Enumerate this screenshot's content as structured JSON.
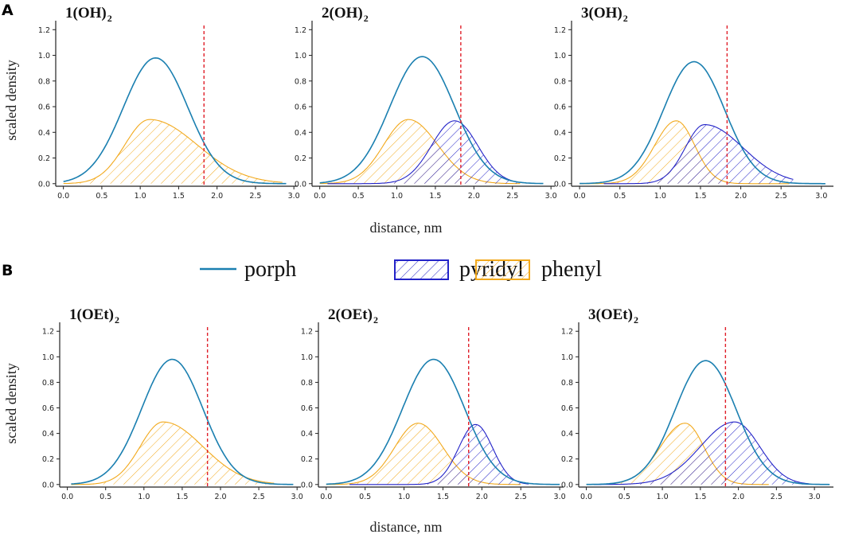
{
  "section_labels": {
    "a": "A",
    "b": "B"
  },
  "legend": {
    "items": [
      {
        "key": "porph",
        "label": "porph",
        "color": "#1a7fb0",
        "style": "line"
      },
      {
        "key": "pyridyl",
        "label": "pyridyl",
        "color": "#2323c8",
        "style": "hatch"
      },
      {
        "key": "phenyl",
        "label": "phenyl",
        "color": "#f2a91c",
        "style": "hatch"
      }
    ]
  },
  "shared_axes": {
    "xlabel": "distance, nm",
    "ylabel": "scaled density",
    "xticks": [
      "0.0",
      "0.5",
      "1.0",
      "1.5",
      "2.0",
      "2.5",
      "3.0"
    ],
    "yticks": [
      "0.0",
      "0.2",
      "0.4",
      "0.6",
      "0.8",
      "1.0",
      "1.2"
    ],
    "cutoff_color": "#e0202a"
  },
  "chart_data": [
    {
      "type": "area",
      "title_main": "1(OH)",
      "title_sub": "2",
      "xlim": [
        -0.1,
        3.05
      ],
      "ylim": [
        -0.02,
        1.27
      ],
      "cutoff_x": 1.83,
      "series": [
        {
          "name": "porph",
          "kind": "gauss",
          "mu": 1.2,
          "sigma": 0.42,
          "amp": 0.98,
          "x_range": [
            0.0,
            2.9
          ]
        },
        {
          "name": "phenyl",
          "kind": "skew",
          "mu": 1.12,
          "sigma_left": 0.32,
          "sigma_right": 0.62,
          "amp": 0.5,
          "x_range": [
            0.0,
            2.85
          ]
        }
      ]
    },
    {
      "type": "area",
      "title_main": "2(OH)",
      "title_sub": "2",
      "xlim": [
        -0.1,
        3.05
      ],
      "ylim": [
        -0.02,
        1.27
      ],
      "cutoff_x": 1.83,
      "series": [
        {
          "name": "porph",
          "kind": "gauss",
          "mu": 1.33,
          "sigma": 0.42,
          "amp": 0.99,
          "x_range": [
            0.0,
            2.9
          ]
        },
        {
          "name": "phenyl",
          "kind": "skew",
          "mu": 1.15,
          "sigma_left": 0.32,
          "sigma_right": 0.38,
          "amp": 0.5,
          "x_range": [
            0.0,
            2.6
          ]
        },
        {
          "name": "pyridyl",
          "kind": "gauss",
          "mu": 1.75,
          "sigma": 0.3,
          "amp": 0.49,
          "x_range": [
            0.1,
            2.6
          ]
        }
      ]
    },
    {
      "type": "area",
      "title_main": "3(OH)",
      "title_sub": "2",
      "xlim": [
        -0.1,
        3.15
      ],
      "ylim": [
        -0.02,
        1.27
      ],
      "cutoff_x": 1.83,
      "series": [
        {
          "name": "porph",
          "kind": "gauss",
          "mu": 1.42,
          "sigma": 0.38,
          "amp": 0.95,
          "x_range": [
            0.0,
            3.05
          ]
        },
        {
          "name": "phenyl",
          "kind": "skew",
          "mu": 1.2,
          "sigma_left": 0.27,
          "sigma_right": 0.23,
          "amp": 0.49,
          "x_range": [
            0.0,
            2.6
          ]
        },
        {
          "name": "pyridyl",
          "kind": "skew",
          "mu": 1.55,
          "sigma_left": 0.24,
          "sigma_right": 0.48,
          "amp": 0.46,
          "x_range": [
            0.3,
            2.65
          ]
        }
      ]
    },
    {
      "type": "area",
      "title_main": "1(OEt)",
      "title_sub": "2",
      "xlim": [
        -0.1,
        3.05
      ],
      "ylim": [
        -0.02,
        1.27
      ],
      "cutoff_x": 1.83,
      "series": [
        {
          "name": "porph",
          "kind": "gauss",
          "mu": 1.37,
          "sigma": 0.4,
          "amp": 0.98,
          "x_range": [
            0.05,
            2.95
          ]
        },
        {
          "name": "phenyl",
          "kind": "skew",
          "mu": 1.25,
          "sigma_left": 0.3,
          "sigma_right": 0.52,
          "amp": 0.49,
          "x_range": [
            0.05,
            2.7
          ]
        }
      ]
    },
    {
      "type": "area",
      "title_main": "2(OEt)",
      "title_sub": "2",
      "xlim": [
        -0.1,
        3.05
      ],
      "ylim": [
        -0.02,
        1.27
      ],
      "cutoff_x": 1.83,
      "series": [
        {
          "name": "porph",
          "kind": "gauss",
          "mu": 1.38,
          "sigma": 0.4,
          "amp": 0.98,
          "x_range": [
            0.0,
            3.0
          ]
        },
        {
          "name": "phenyl",
          "kind": "skew",
          "mu": 1.18,
          "sigma_left": 0.3,
          "sigma_right": 0.32,
          "amp": 0.48,
          "x_range": [
            0.0,
            2.5
          ]
        },
        {
          "name": "pyridyl",
          "kind": "gauss",
          "mu": 1.92,
          "sigma": 0.22,
          "amp": 0.47,
          "x_range": [
            0.3,
            2.6
          ]
        }
      ]
    },
    {
      "type": "area",
      "title_main": "3(OEt)",
      "title_sub": "2",
      "xlim": [
        -0.1,
        3.25
      ],
      "ylim": [
        -0.02,
        1.27
      ],
      "cutoff_x": 1.83,
      "series": [
        {
          "name": "porph",
          "kind": "gauss",
          "mu": 1.57,
          "sigma": 0.4,
          "amp": 0.97,
          "x_range": [
            0.0,
            3.2
          ]
        },
        {
          "name": "phenyl",
          "kind": "skew",
          "mu": 1.3,
          "sigma_left": 0.33,
          "sigma_right": 0.25,
          "amp": 0.48,
          "x_range": [
            0.0,
            2.4
          ]
        },
        {
          "name": "pyridyl",
          "kind": "skew",
          "mu": 1.95,
          "sigma_left": 0.45,
          "sigma_right": 0.33,
          "amp": 0.49,
          "x_range": [
            0.1,
            2.95
          ]
        }
      ]
    }
  ]
}
